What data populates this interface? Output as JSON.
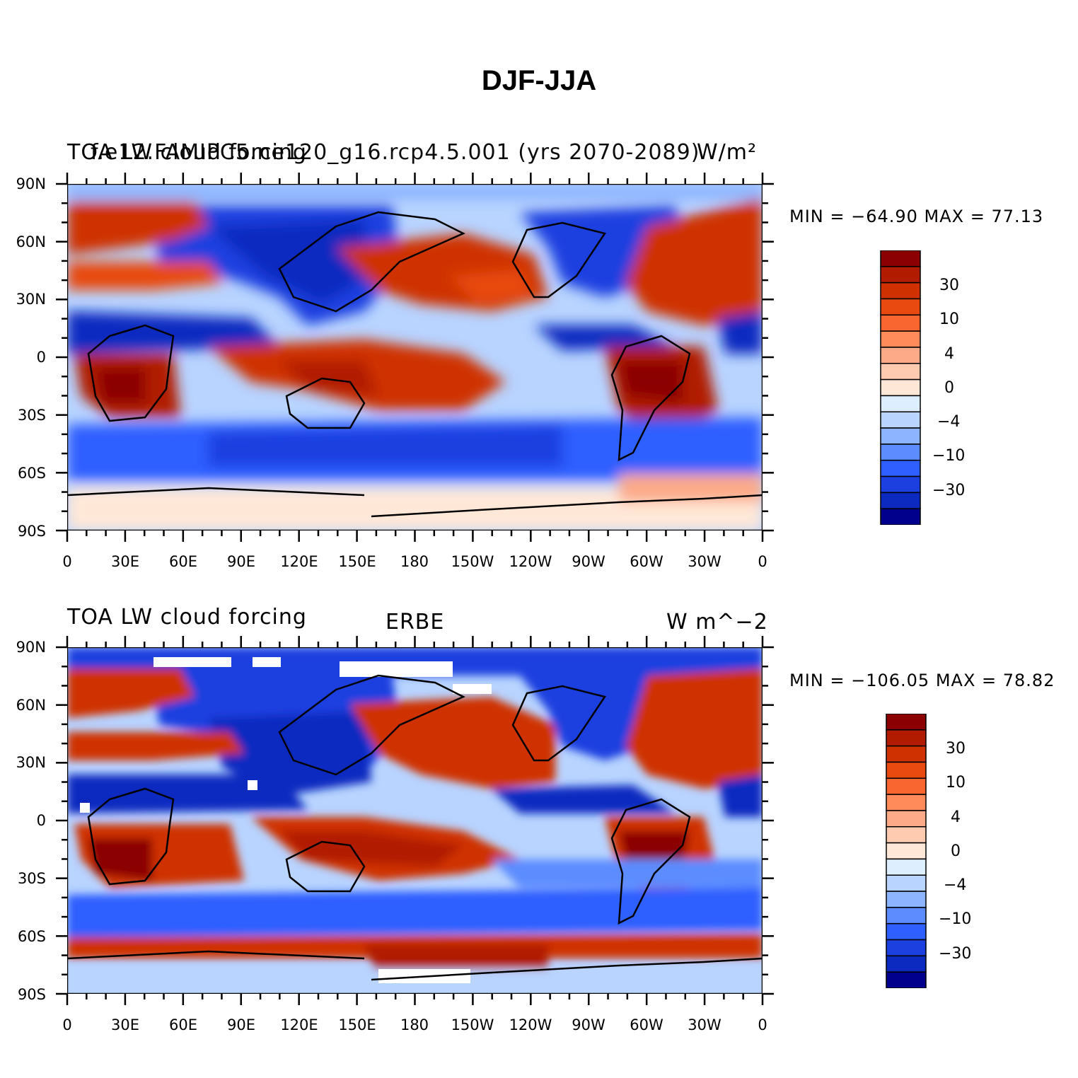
{
  "title": "DJF-JJA",
  "panels": [
    {
      "left_title": "TOA LW cloud forcing",
      "center_title": "f.e12.FAMIPC5.ne120_g16.rcp4.5.001 (yrs 2070-2089)",
      "units": "W/m²",
      "stats": "MIN = −64.90 MAX =  77.13"
    },
    {
      "left_title": "TOA LW cloud forcing",
      "center_title": "ERBE",
      "units": "W m^−2",
      "stats": "MIN = −106.05 MAX =  78.82"
    }
  ],
  "y_ticks": [
    "90N",
    "60N",
    "30N",
    "0",
    "30S",
    "60S",
    "90S"
  ],
  "x_ticks": [
    "0",
    "30E",
    "60E",
    "90E",
    "120E",
    "150E",
    "180",
    "150W",
    "120W",
    "90W",
    "60W",
    "30W",
    "0"
  ],
  "colorbar": {
    "labels": [
      "30",
      "10",
      "4",
      "0",
      "−4",
      "−10",
      "−30"
    ],
    "colors": [
      "#8b0000",
      "#b11c00",
      "#cf3200",
      "#e84a10",
      "#fa6630",
      "#ff8a5a",
      "#fcaa88",
      "#fecbb0",
      "#ffe8d8",
      "#ddefff",
      "#b8d4ff",
      "#8cb4ff",
      "#5c8cff",
      "#2f5fff",
      "#1c40e0",
      "#0c2ac0",
      "#00008c"
    ]
  }
}
